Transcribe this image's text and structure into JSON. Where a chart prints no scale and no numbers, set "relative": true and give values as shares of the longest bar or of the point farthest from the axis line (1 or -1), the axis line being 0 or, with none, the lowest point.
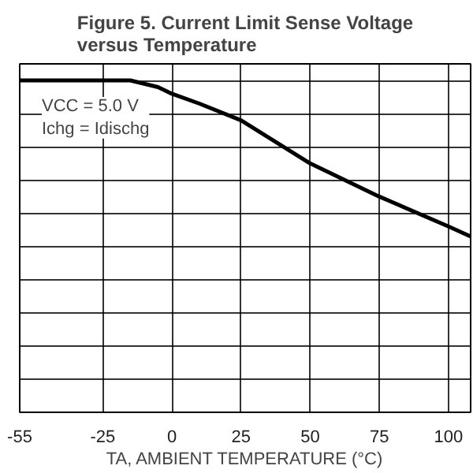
{
  "chart_data": {
    "type": "line",
    "title": "Figure 5. Current Limit Sense Voltage\nversus Temperature",
    "xlabel": "TA, AMBIENT TEMPERATURE (°C)",
    "x": [
      -55,
      -40,
      -25,
      -15,
      -10,
      -5,
      0,
      10,
      25,
      50,
      75,
      100,
      108
    ],
    "series": [
      {
        "color": "#000000",
        "values": [
          1,
          1,
          1,
          1,
          0.99,
          0.98,
          0.96,
          0.93,
          0.88,
          0.75,
          0.65,
          0.56,
          0.53
        ]
      }
    ],
    "relative": true,
    "xlim": [
      -55,
      108
    ],
    "xticks": [
      -55,
      -25,
      0,
      25,
      50,
      75,
      100
    ],
    "annotations": [
      "VCC = 5.0 V\nIchg = Idischg"
    ],
    "grid": true,
    "marker": "none",
    "line_style": "solid"
  }
}
